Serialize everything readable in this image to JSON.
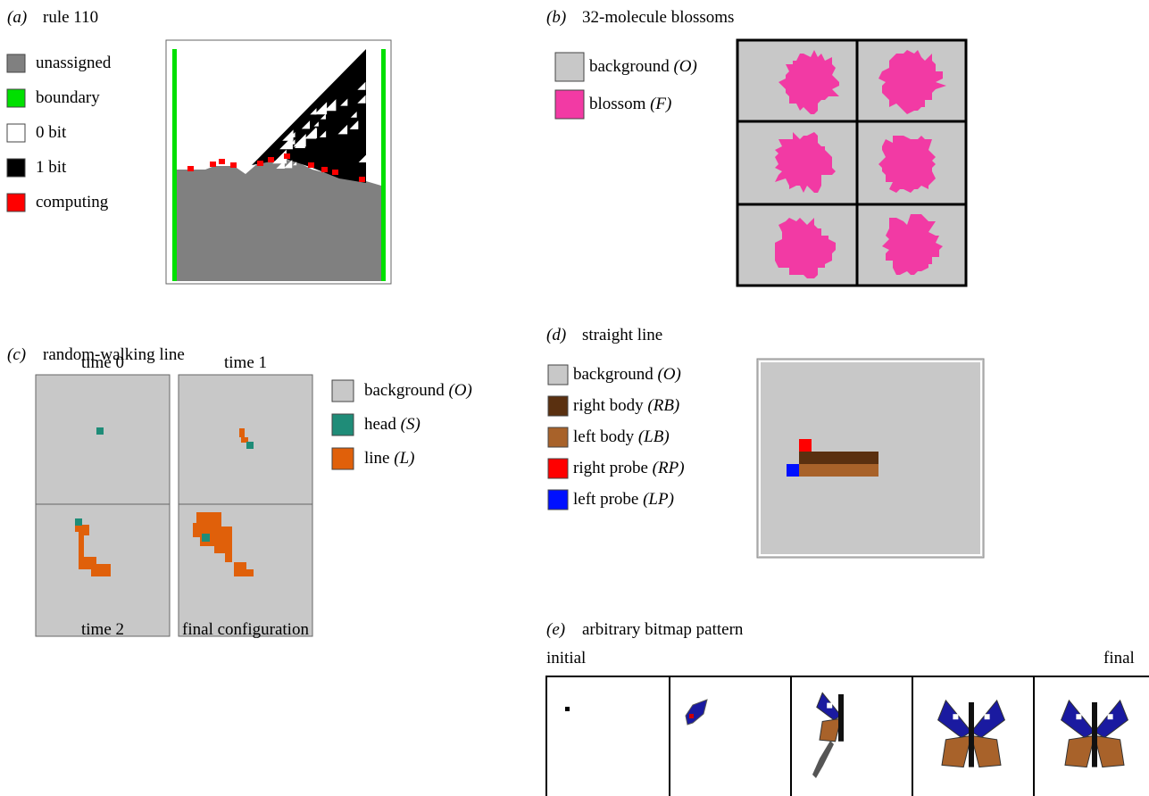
{
  "panels": [
    {
      "label": "(a)",
      "title": "rule 110",
      "legend": [
        {
          "name": "unassigned"
        },
        {
          "name": "boundary"
        },
        {
          "name": "0 bit"
        },
        {
          "name": "1 bit"
        },
        {
          "name": "computing"
        }
      ]
    },
    {
      "label": "(b)",
      "title": "32-molecule blossoms",
      "legend": [
        {
          "name": "background",
          "symbol": "(O)"
        },
        {
          "name": "blossom",
          "symbol": "(F)"
        }
      ]
    },
    {
      "label": "(c)",
      "title": "random-walking line",
      "frames": [
        "time 0",
        "time 1",
        "time 2",
        "final configuration"
      ],
      "legend": [
        {
          "name": "background",
          "symbol": "(O)"
        },
        {
          "name": "head",
          "symbol": "(S)"
        },
        {
          "name": "line",
          "symbol": "(L)"
        }
      ]
    },
    {
      "label": "(d)",
      "title": "straight line",
      "legend": [
        {
          "name": "background",
          "symbol": "(O)"
        },
        {
          "name": "right body",
          "symbol": "(RB)"
        },
        {
          "name": "left body",
          "symbol": "(LB)"
        },
        {
          "name": "right probe",
          "symbol": "(RP)"
        },
        {
          "name": "left probe",
          "symbol": "(LP)"
        }
      ]
    },
    {
      "label": "(e)",
      "title": "arbitrary bitmap pattern",
      "start": "initial",
      "end": "final"
    }
  ]
}
